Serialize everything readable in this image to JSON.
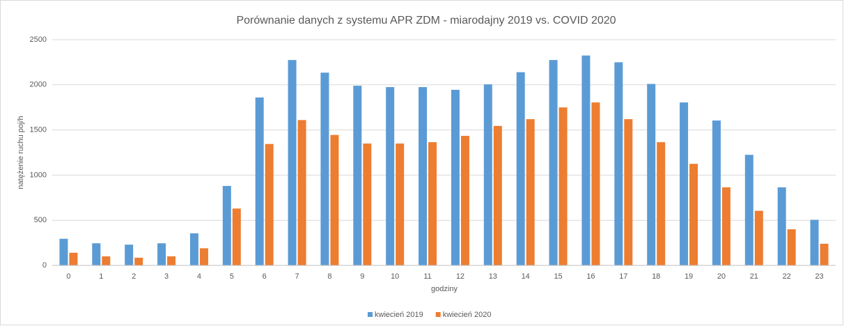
{
  "chart_data": {
    "type": "bar",
    "title": "Porównanie danych z systemu APR ZDM - miarodajny 2019 vs. COVID 2020",
    "x_label": "godziny",
    "y_label": "natężenie ruchu poj/h",
    "categories": [
      "0",
      "1",
      "2",
      "3",
      "4",
      "5",
      "6",
      "7",
      "8",
      "9",
      "10",
      "11",
      "12",
      "13",
      "14",
      "15",
      "16",
      "17",
      "18",
      "19",
      "20",
      "21",
      "22",
      "23"
    ],
    "series": [
      {
        "name": "kwiecień 2019",
        "color": "#5b9bd5",
        "values": [
          295,
          245,
          230,
          245,
          355,
          880,
          1860,
          2275,
          2135,
          1990,
          1975,
          1975,
          1945,
          2005,
          2140,
          2275,
          2325,
          2250,
          2010,
          1805,
          1605,
          1225,
          865,
          505
        ]
      },
      {
        "name": "kwiecień 2020",
        "color": "#ed7d31",
        "values": [
          140,
          100,
          85,
          100,
          190,
          630,
          1345,
          1610,
          1445,
          1350,
          1350,
          1365,
          1435,
          1545,
          1620,
          1750,
          1805,
          1620,
          1365,
          1125,
          865,
          605,
          400,
          240
        ]
      }
    ],
    "ylim": [
      0,
      2500
    ],
    "yticks": [
      0,
      500,
      1000,
      1500,
      2000,
      2500
    ],
    "grid": true,
    "legend": "bottom"
  }
}
